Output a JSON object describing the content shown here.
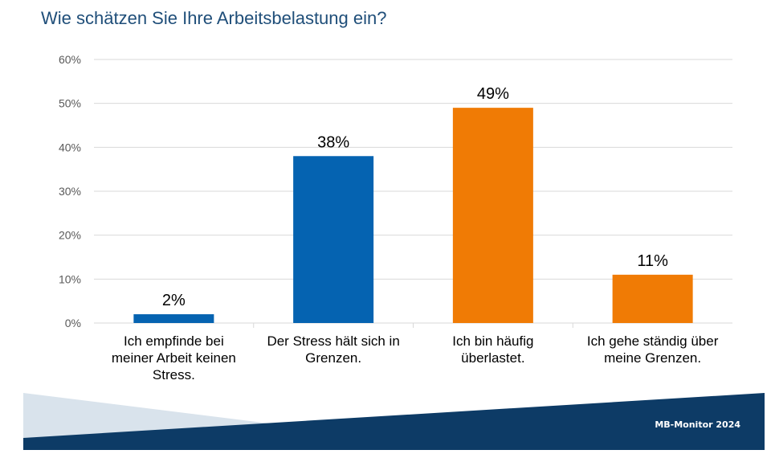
{
  "chart_data": {
    "type": "bar",
    "title": "Wie schätzen Sie Ihre Arbeitsbelastung ein?",
    "categories": [
      [
        "Ich empfinde bei",
        "meiner Arbeit keinen",
        "Stress."
      ],
      [
        "Der Stress hält sich in",
        "Grenzen."
      ],
      [
        "Ich bin häufig",
        "überlastet."
      ],
      [
        "Ich gehe ständig über",
        "meine Grenzen."
      ]
    ],
    "values": [
      2,
      38,
      49,
      11
    ],
    "value_labels": [
      "2%",
      "38%",
      "49%",
      "11%"
    ],
    "colors": [
      "#0563b1",
      "#0563b1",
      "#f07b05",
      "#f07b05"
    ],
    "ylim": [
      0,
      60
    ],
    "yticks": [
      0,
      10,
      20,
      30,
      40,
      50,
      60
    ],
    "ytick_labels": [
      "0%",
      "10%",
      "20%",
      "30%",
      "40%",
      "50%",
      "60%"
    ],
    "grid": true,
    "xlabel": "",
    "ylabel": ""
  },
  "footer": {
    "label": "MB-Monitor 2024"
  },
  "colors": {
    "title": "#1f4e79",
    "band_dark": "#0d3b66",
    "band_light": "#d9e3ec",
    "grid": "#d9d9d9",
    "tick_text": "#595959"
  }
}
